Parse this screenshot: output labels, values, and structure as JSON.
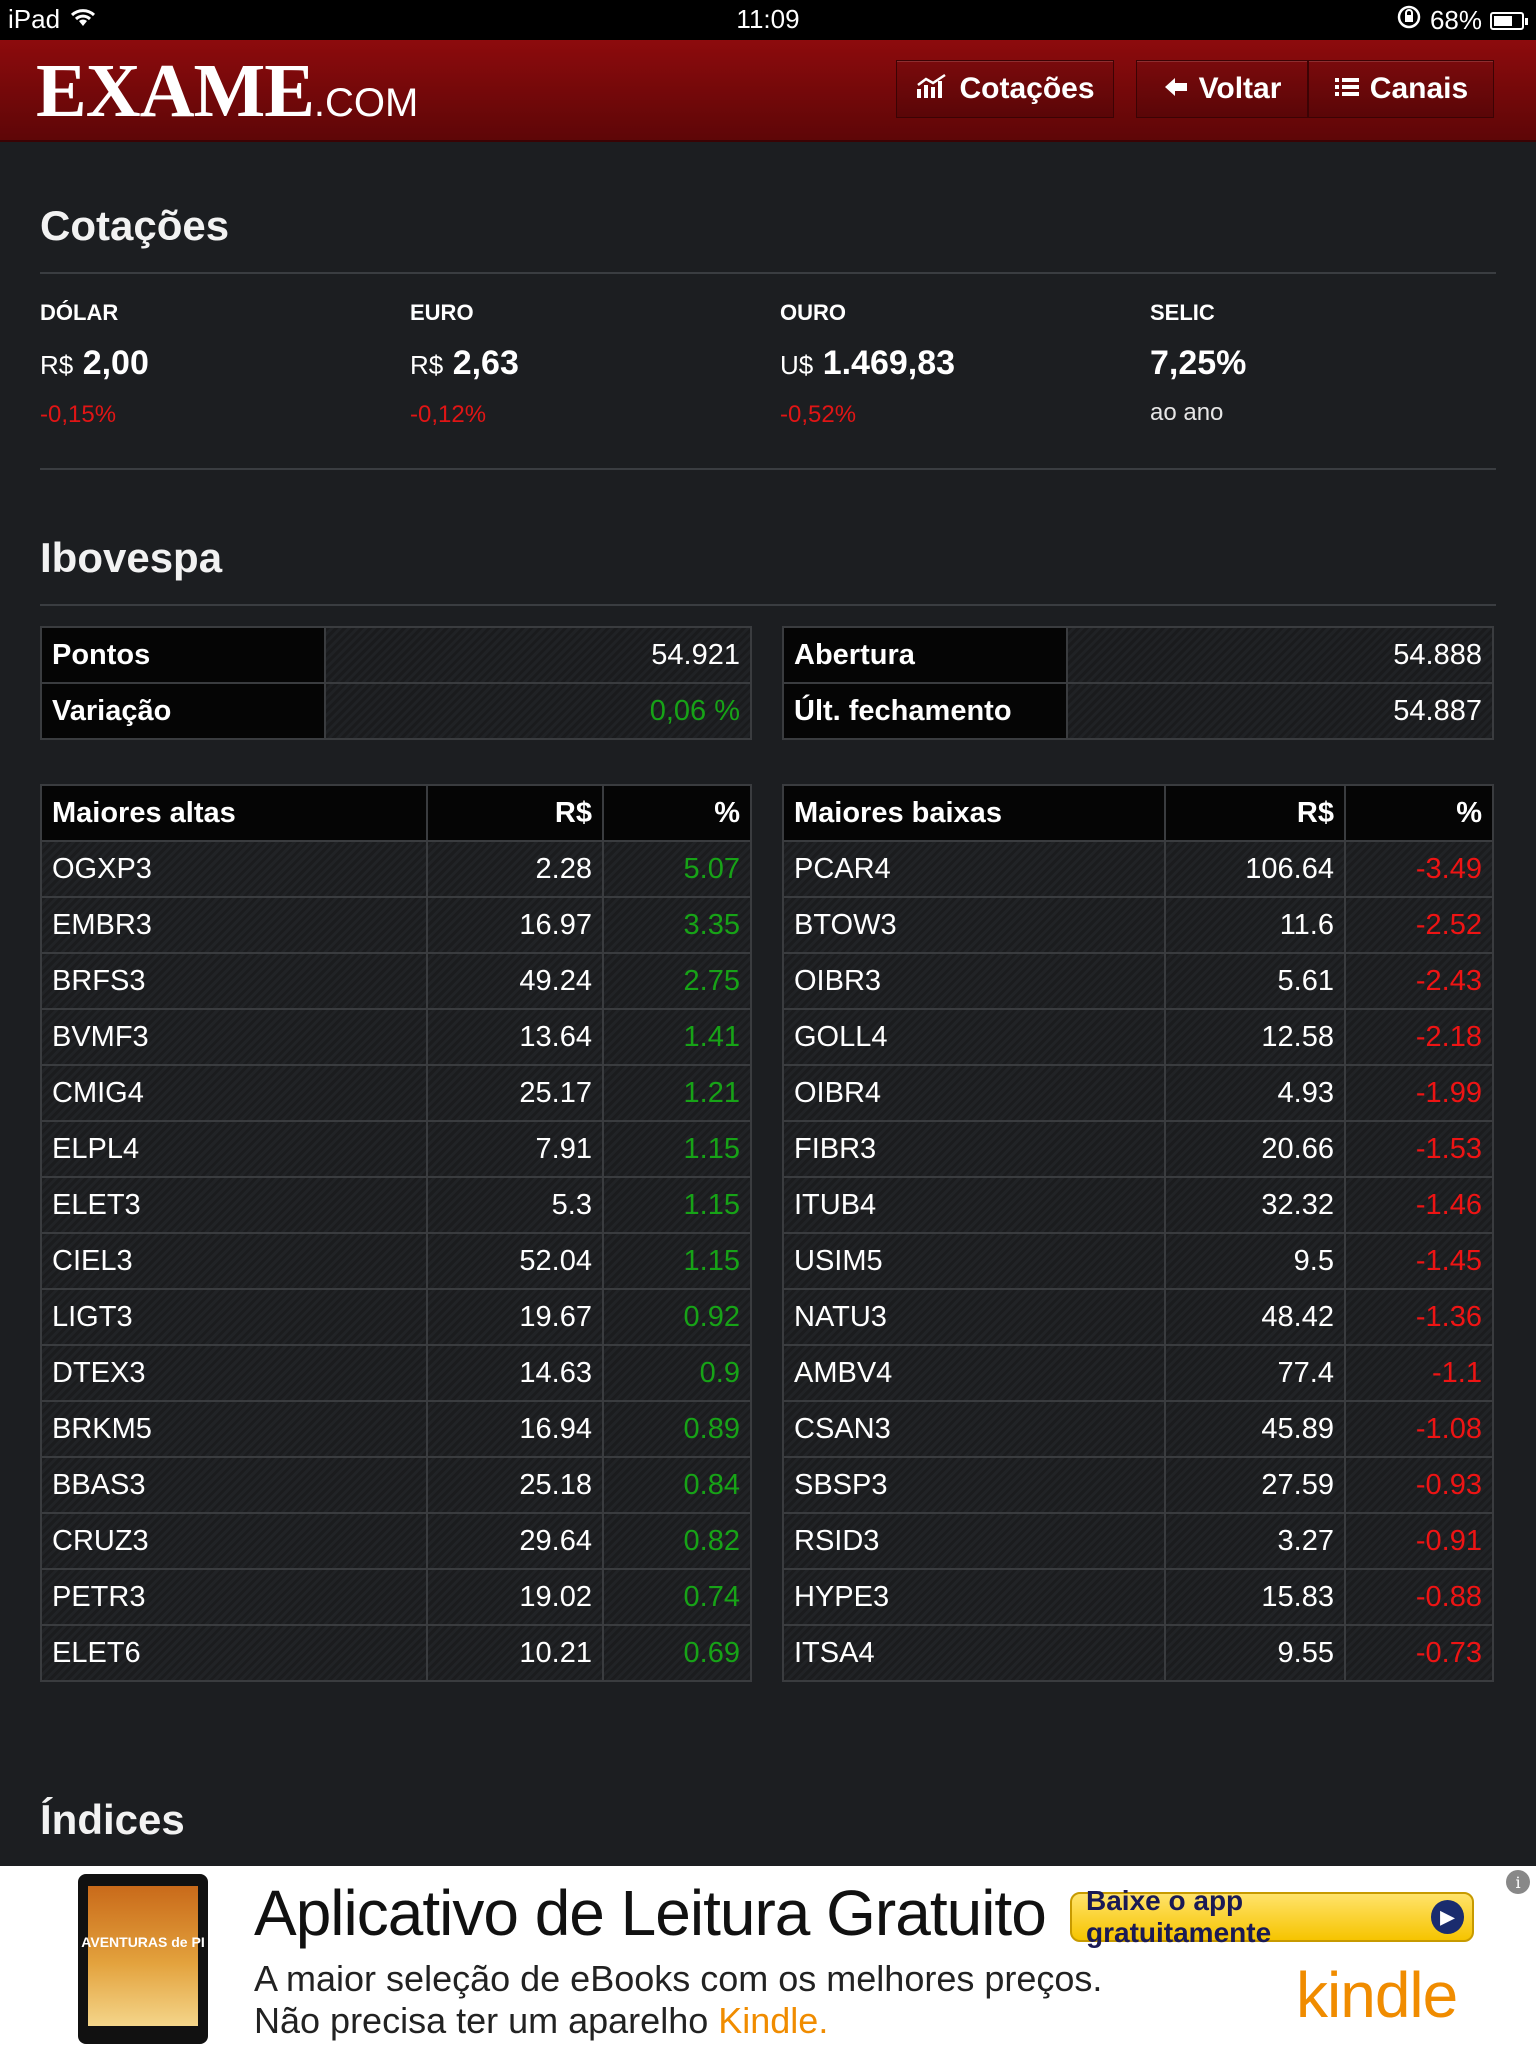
{
  "status_bar": {
    "device": "iPad",
    "time": "11:09",
    "battery": "68%",
    "battery_level": 0.68
  },
  "header": {
    "logo_main": "EXAME",
    "logo_suffix": ".COM",
    "buttons": {
      "cotacoes": "Cotações",
      "voltar": "Voltar",
      "canais": "Canais"
    }
  },
  "cotacoes": {
    "title": "Cotações",
    "items": [
      {
        "label": "DÓLAR",
        "currency": "R$",
        "value": "2,00",
        "change": "-0,15%"
      },
      {
        "label": "EURO",
        "currency": "R$",
        "value": "2,63",
        "change": "-0,12%"
      },
      {
        "label": "OURO",
        "currency": "U$",
        "value": "1.469,83",
        "change": "-0,52%"
      },
      {
        "label": "SELIC",
        "currency": "",
        "value": "7,25%",
        "sub": "ao ano"
      }
    ]
  },
  "ibovespa": {
    "title": "Ibovespa",
    "stats_left": [
      {
        "label": "Pontos",
        "value": "54.921"
      },
      {
        "label": "Variação",
        "value": "0,06 %"
      }
    ],
    "stats_right": [
      {
        "label": "Abertura",
        "value": "54.888"
      },
      {
        "label": "Últ. fechamento",
        "value": "54.887"
      }
    ],
    "altas": {
      "headers": [
        "Maiores altas",
        "R$",
        "%"
      ],
      "rows": [
        [
          "OGXP3",
          "2.28",
          "5.07"
        ],
        [
          "EMBR3",
          "16.97",
          "3.35"
        ],
        [
          "BRFS3",
          "49.24",
          "2.75"
        ],
        [
          "BVMF3",
          "13.64",
          "1.41"
        ],
        [
          "CMIG4",
          "25.17",
          "1.21"
        ],
        [
          "ELPL4",
          "7.91",
          "1.15"
        ],
        [
          "ELET3",
          "5.3",
          "1.15"
        ],
        [
          "CIEL3",
          "52.04",
          "1.15"
        ],
        [
          "LIGT3",
          "19.67",
          "0.92"
        ],
        [
          "DTEX3",
          "14.63",
          "0.9"
        ],
        [
          "BRKM5",
          "16.94",
          "0.89"
        ],
        [
          "BBAS3",
          "25.18",
          "0.84"
        ],
        [
          "CRUZ3",
          "29.64",
          "0.82"
        ],
        [
          "PETR3",
          "19.02",
          "0.74"
        ],
        [
          "ELET6",
          "10.21",
          "0.69"
        ]
      ]
    },
    "baixas": {
      "headers": [
        "Maiores baixas",
        "R$",
        "%"
      ],
      "rows": [
        [
          "PCAR4",
          "106.64",
          "-3.49"
        ],
        [
          "BTOW3",
          "11.6",
          "-2.52"
        ],
        [
          "OIBR3",
          "5.61",
          "-2.43"
        ],
        [
          "GOLL4",
          "12.58",
          "-2.18"
        ],
        [
          "OIBR4",
          "4.93",
          "-1.99"
        ],
        [
          "FIBR3",
          "20.66",
          "-1.53"
        ],
        [
          "ITUB4",
          "32.32",
          "-1.46"
        ],
        [
          "USIM5",
          "9.5",
          "-1.45"
        ],
        [
          "NATU3",
          "48.42",
          "-1.36"
        ],
        [
          "AMBV4",
          "77.4",
          "-1.1"
        ],
        [
          "CSAN3",
          "45.89",
          "-1.08"
        ],
        [
          "SBSP3",
          "27.59",
          "-0.93"
        ],
        [
          "RSID3",
          "3.27",
          "-0.91"
        ],
        [
          "HYPE3",
          "15.83",
          "-0.88"
        ],
        [
          "ITSA4",
          "9.55",
          "-0.73"
        ]
      ]
    }
  },
  "indices": {
    "title": "Índices"
  },
  "ad": {
    "book_title": "AVENTURAS de PI",
    "headline": "Aplicativo de Leitura Gratuito",
    "line1": "A maior seleção de eBooks com os melhores preços.",
    "line2_prefix": "Não precisa ter um aparelho ",
    "line2_brand": "Kindle.",
    "cta": "Baixe o app gratuitamente",
    "brand": "kindle",
    "info": "i"
  },
  "colors": {
    "header_red": "#8d0b0d",
    "positive": "#17a317",
    "negative": "#ee1414",
    "background": "#1c1e21"
  }
}
